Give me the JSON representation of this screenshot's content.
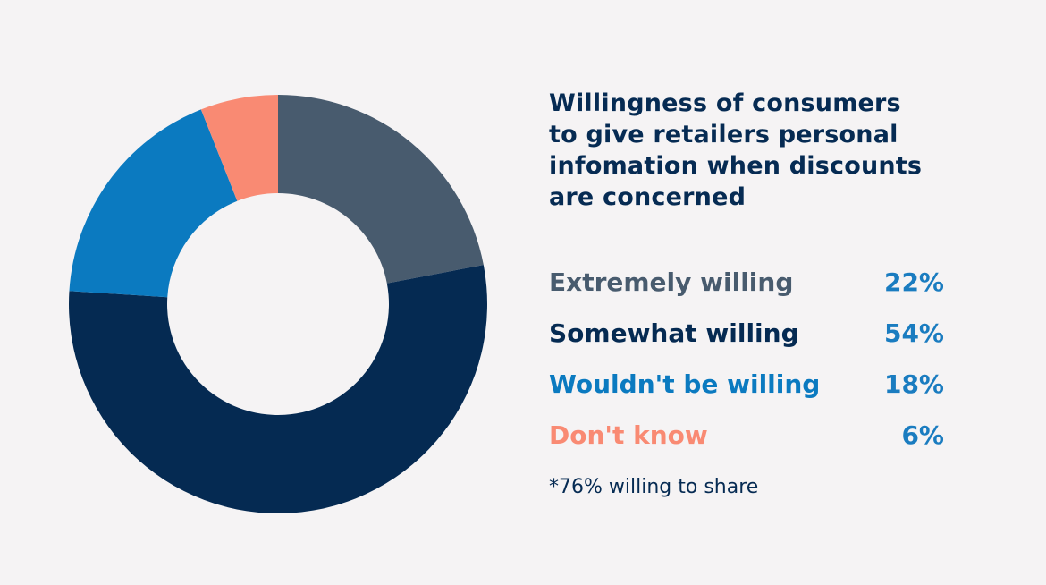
{
  "chart_data": {
    "type": "pie",
    "variant": "donut",
    "title_lines": [
      "Willingness of consumers",
      "to give retailers personal",
      "infomation when discounts",
      "are concerned"
    ],
    "series": [
      {
        "name": "Extremely willing",
        "value": 22,
        "label": "22%",
        "color": "#485b6e"
      },
      {
        "name": "Somewhat willing",
        "value": 54,
        "label": "54%",
        "color": "#052a52"
      },
      {
        "name": "Wouldn't be willing",
        "value": 18,
        "label": "18%",
        "color": "#0b7ac0"
      },
      {
        "name": "Don't know",
        "value": 6,
        "label": "6%",
        "color": "#f98a73"
      }
    ],
    "start_angle": "top",
    "direction": "clockwise",
    "legend_position": "right",
    "annotation": "*76% willing to share"
  }
}
